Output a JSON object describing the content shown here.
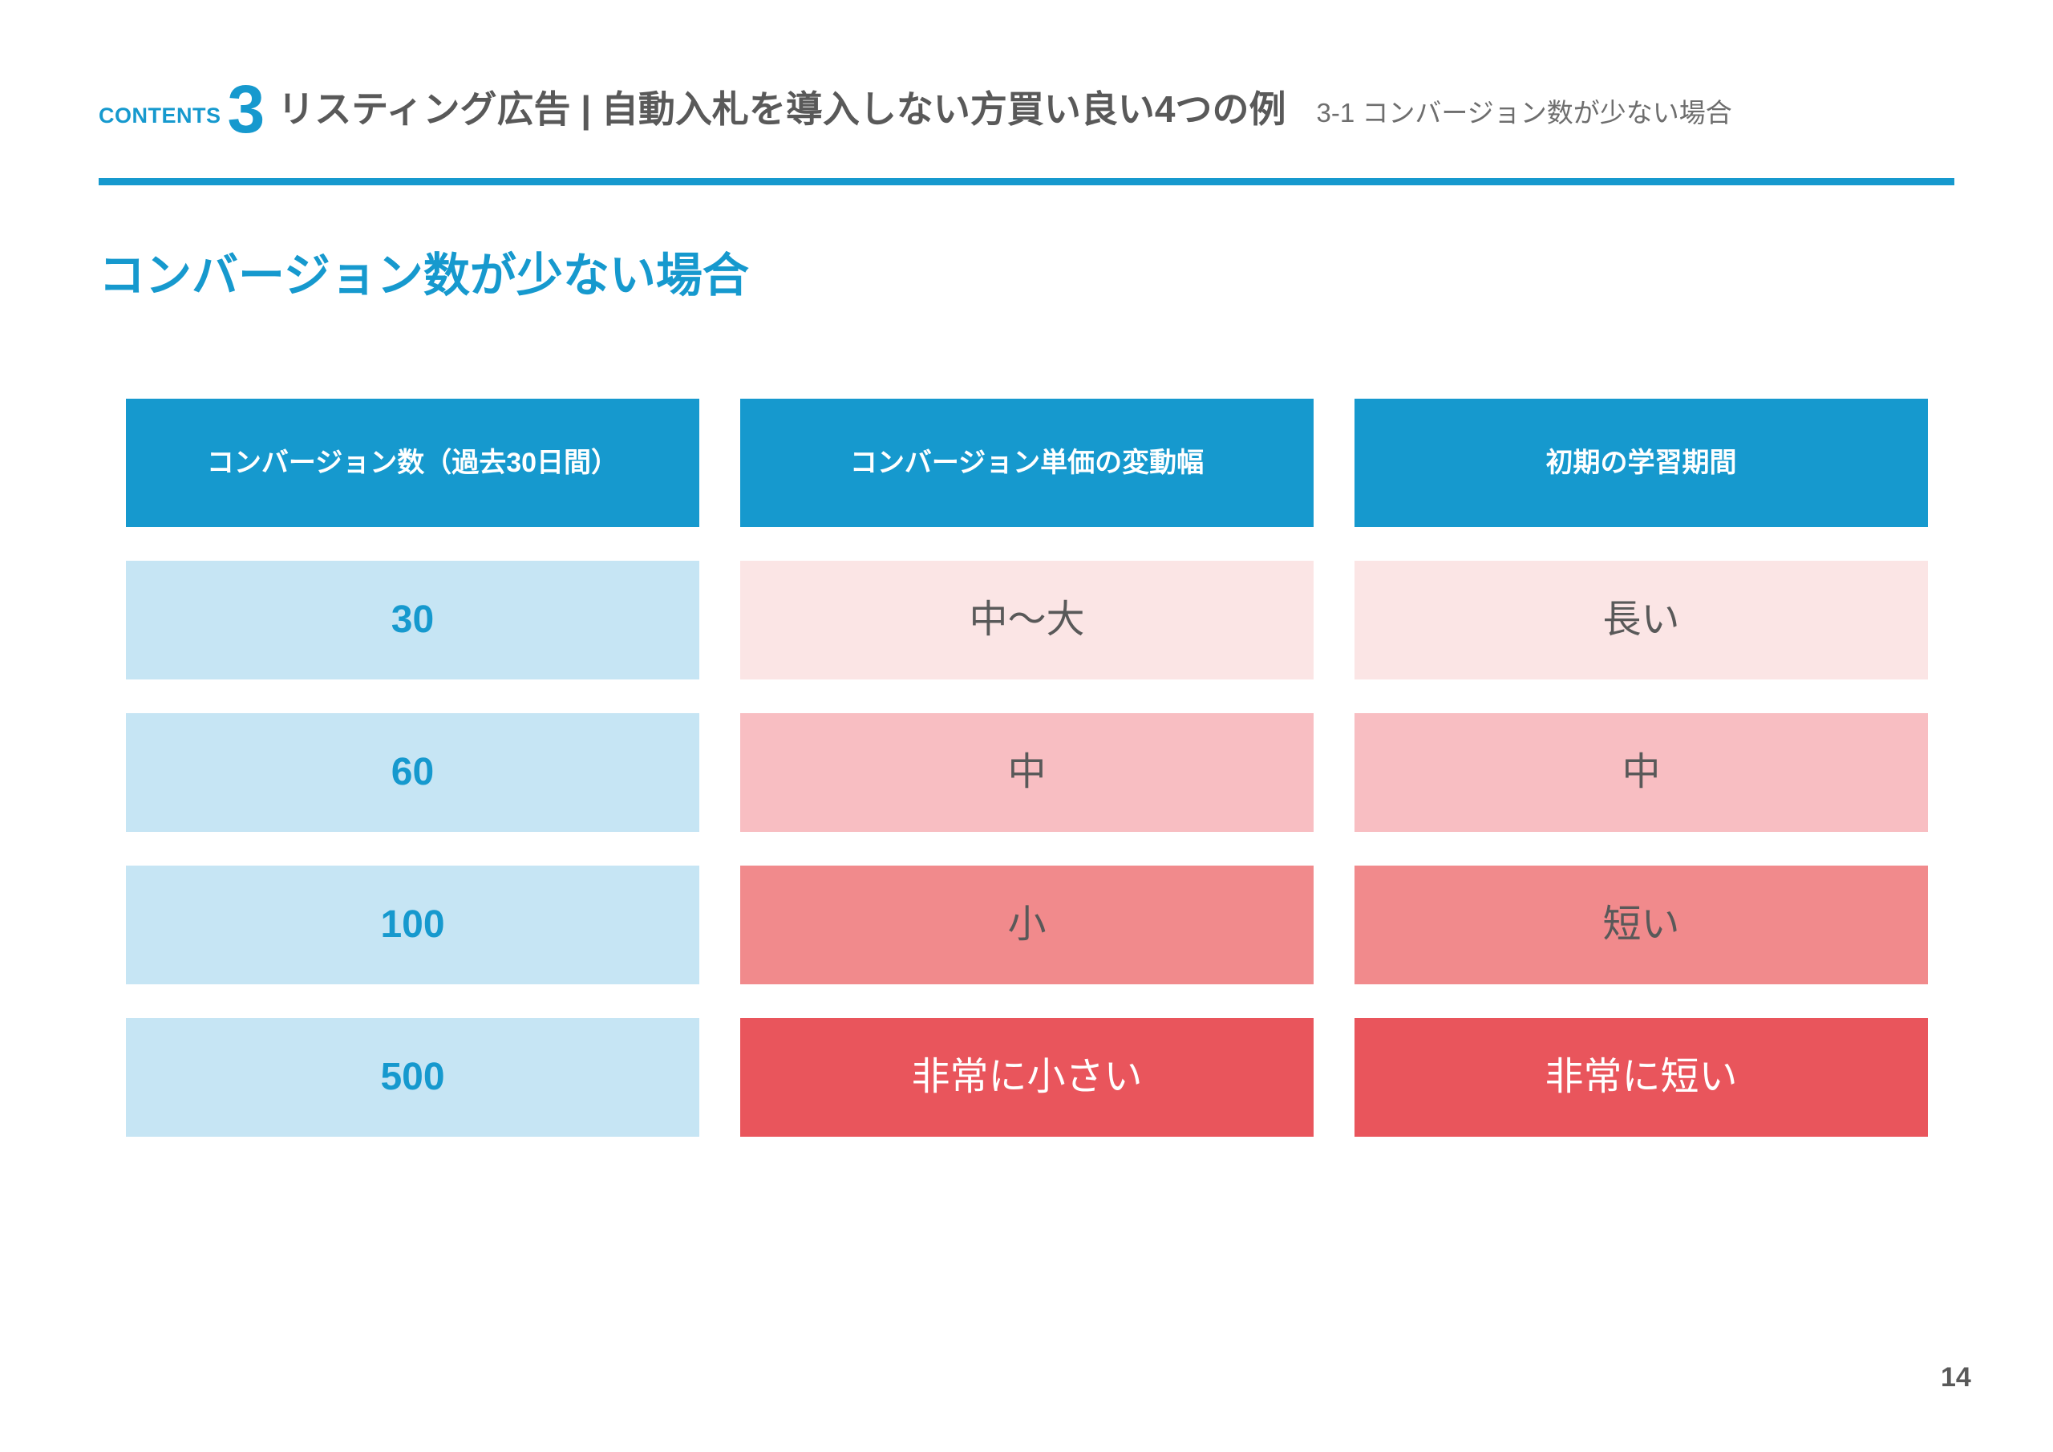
{
  "header": {
    "contents_label": "CONTENTS",
    "chapter_number": "3",
    "chapter_title": "リスティング広告 | 自動入札を導入しない方買い良い4つの例",
    "section_label": "3-1 コンバージョン数が少ない場合"
  },
  "main": {
    "title": "コンバージョン数が少ない場合"
  },
  "chart_data": {
    "type": "table",
    "columns": [
      "コンバージョン数（過去30日間）",
      "コンバージョン単価の変動幅",
      "初期の学習期間"
    ],
    "rows": [
      [
        "30",
        "中〜大",
        "長い"
      ],
      [
        "60",
        "中",
        "中"
      ],
      [
        "100",
        "小",
        "短い"
      ],
      [
        "500",
        "非常に小さい",
        "非常に短い"
      ]
    ]
  },
  "footer": {
    "page_number": "14"
  },
  "colors": {
    "accent_blue": "#1699CE",
    "light_blue": "#C6E5F4",
    "pink_0": "#FBE5E5",
    "pink_1": "#F8BEC2",
    "pink_2": "#F18A8C",
    "pink_3": "#E9555C",
    "text_dark": "#595959",
    "text_gray": "#6E6E6E"
  }
}
